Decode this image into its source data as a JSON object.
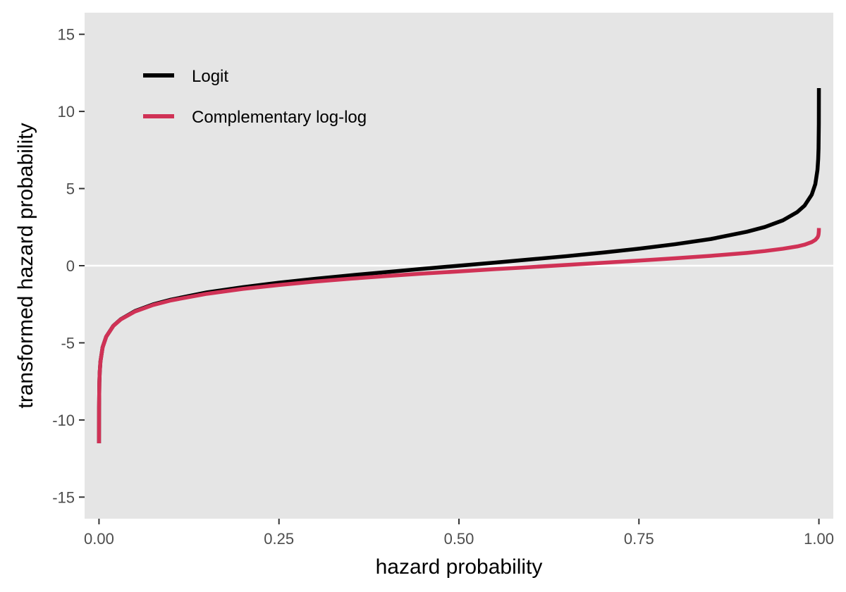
{
  "chart_data": {
    "type": "line",
    "xlabel": "hazard probability",
    "ylabel": "transformed hazard probability",
    "xlim": [
      -0.02,
      1.02
    ],
    "ylim": [
      -16.4,
      16.4
    ],
    "x_ticks": [
      0,
      0.25,
      0.5,
      0.75,
      1
    ],
    "x_tick_labels": [
      "0.00",
      "0.25",
      "0.50",
      "0.75",
      "1.00"
    ],
    "y_ticks": [
      -15,
      -10,
      -5,
      0,
      5,
      10,
      15
    ],
    "y_tick_labels": [
      "-15",
      "-10",
      "-5",
      "0",
      "5",
      "10",
      "15"
    ],
    "grid": false,
    "reference_line": {
      "y": 0,
      "color": "#ffffff"
    },
    "background": "#e5e5e5",
    "legend": {
      "position": "top-left"
    },
    "series": [
      {
        "name": "Logit",
        "color": "#000000",
        "x": [
          1e-05,
          0.0001,
          0.0005,
          0.001,
          0.002,
          0.005,
          0.01,
          0.02,
          0.03,
          0.05,
          0.075,
          0.1,
          0.15,
          0.2,
          0.25,
          0.3,
          0.35,
          0.4,
          0.45,
          0.5,
          0.55,
          0.6,
          0.65,
          0.7,
          0.75,
          0.8,
          0.85,
          0.9,
          0.925,
          0.95,
          0.97,
          0.98,
          0.99,
          0.995,
          0.998,
          0.999,
          0.9995,
          0.9999,
          0.99999
        ],
        "y": [
          -11.51,
          -9.21,
          -7.6,
          -6.91,
          -6.21,
          -5.29,
          -4.6,
          -3.89,
          -3.48,
          -2.94,
          -2.51,
          -2.2,
          -1.73,
          -1.39,
          -1.1,
          -0.85,
          -0.62,
          -0.41,
          -0.2,
          0,
          0.2,
          0.41,
          0.62,
          0.85,
          1.1,
          1.39,
          1.73,
          2.2,
          2.51,
          2.94,
          3.48,
          3.89,
          4.6,
          5.29,
          6.21,
          6.91,
          7.6,
          9.21,
          11.51
        ]
      },
      {
        "name": "Complementary log-log",
        "color": "#d03256",
        "x": [
          1e-05,
          0.0001,
          0.0005,
          0.001,
          0.002,
          0.005,
          0.01,
          0.02,
          0.03,
          0.05,
          0.075,
          0.1,
          0.15,
          0.2,
          0.25,
          0.3,
          0.35,
          0.4,
          0.45,
          0.5,
          0.55,
          0.6,
          0.65,
          0.7,
          0.75,
          0.8,
          0.85,
          0.9,
          0.925,
          0.95,
          0.97,
          0.98,
          0.99,
          0.995,
          0.998,
          0.999,
          0.9995,
          0.9999,
          0.99999
        ],
        "y": [
          -11.51,
          -9.21,
          -7.6,
          -6.91,
          -6.21,
          -5.3,
          -4.6,
          -3.9,
          -3.49,
          -2.97,
          -2.55,
          -2.25,
          -1.82,
          -1.5,
          -1.25,
          -1.03,
          -0.84,
          -0.67,
          -0.51,
          -0.37,
          -0.22,
          -0.09,
          0.05,
          0.19,
          0.33,
          0.48,
          0.64,
          0.83,
          0.95,
          1.1,
          1.25,
          1.36,
          1.53,
          1.67,
          1.83,
          1.93,
          2.03,
          2.22,
          2.44
        ]
      }
    ]
  }
}
